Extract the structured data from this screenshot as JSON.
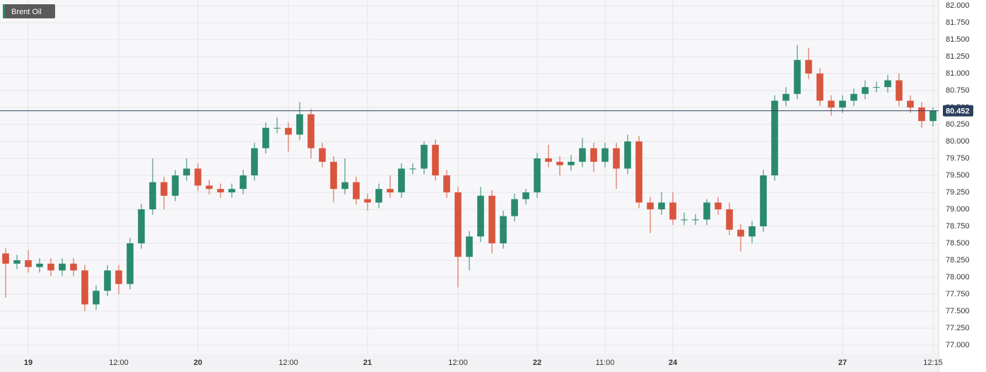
{
  "chart_data": {
    "type": "candlestick",
    "title": "Brent Oil",
    "last": 80.452,
    "up_color": "#2a8a6c",
    "down_color": "#d9553e",
    "grid": true,
    "xlim": [
      -0.5,
      82.5
    ],
    "ylim": [
      76.875,
      82.083
    ],
    "xticks": [
      {
        "value": 2,
        "label": "19"
      },
      {
        "value": 10,
        "label": "12:00"
      },
      {
        "value": 17,
        "label": "20"
      },
      {
        "value": 25,
        "label": "12:00"
      },
      {
        "value": 32,
        "label": "21"
      },
      {
        "value": 40,
        "label": "12:00"
      },
      {
        "value": 47,
        "label": "22"
      },
      {
        "value": 53,
        "label": "11:00"
      },
      {
        "value": 59,
        "label": "24"
      },
      {
        "value": 74,
        "label": "27"
      },
      {
        "value": 82,
        "label": "12:15"
      }
    ],
    "yticks": [
      {
        "value": 77,
        "label": "77.000"
      },
      {
        "value": 77.25,
        "label": "77.250"
      },
      {
        "value": 77.5,
        "label": "77.500"
      },
      {
        "value": 77.75,
        "label": "77.750"
      },
      {
        "value": 78,
        "label": "78.000"
      },
      {
        "value": 78.25,
        "label": "78.250"
      },
      {
        "value": 78.5,
        "label": "78.500"
      },
      {
        "value": 78.75,
        "label": "78.750"
      },
      {
        "value": 79,
        "label": "79.000"
      },
      {
        "value": 79.25,
        "label": "79.250"
      },
      {
        "value": 79.5,
        "label": "79.500"
      },
      {
        "value": 79.75,
        "label": "79.750"
      },
      {
        "value": 80,
        "label": "80.000"
      },
      {
        "value": 80.25,
        "label": "80.250"
      },
      {
        "value": 80.5,
        "label": "80.500"
      },
      {
        "value": 80.75,
        "label": "80.750"
      },
      {
        "value": 81,
        "label": "81.000"
      },
      {
        "value": 81.25,
        "label": "81.250"
      },
      {
        "value": 81.5,
        "label": "81.500"
      },
      {
        "value": 81.75,
        "label": "81.750"
      },
      {
        "value": 82,
        "label": "82.000"
      }
    ],
    "open": [
      78.35,
      78.2,
      78.25,
      78.15,
      78.2,
      78.1,
      78.2,
      78.1,
      77.6,
      77.8,
      78.1,
      77.9,
      78.5,
      79.0,
      79.4,
      79.2,
      79.5,
      79.6,
      79.35,
      79.3,
      79.25,
      79.3,
      79.5,
      79.9,
      80.2,
      80.2,
      80.1,
      80.4,
      79.9,
      79.7,
      79.3,
      79.4,
      79.15,
      79.1,
      79.3,
      79.25,
      79.6,
      79.6,
      79.95,
      79.5,
      79.25,
      78.3,
      78.6,
      79.2,
      78.5,
      78.9,
      79.15,
      79.25,
      79.75,
      79.7,
      79.65,
      79.7,
      79.9,
      79.7,
      79.9,
      79.6,
      80.0,
      79.1,
      79.0,
      79.1,
      78.85,
      78.85,
      78.85,
      79.1,
      79.0,
      78.7,
      78.6,
      78.75,
      79.5,
      80.6,
      80.7,
      81.2,
      81.0,
      80.6,
      80.5,
      80.6,
      80.7,
      80.8,
      80.8,
      80.9,
      80.6,
      80.5,
      80.3
    ],
    "high": [
      78.43,
      78.33,
      78.4,
      78.28,
      78.28,
      78.28,
      78.28,
      78.18,
      77.88,
      78.18,
      78.18,
      78.58,
      79.08,
      79.75,
      79.48,
      79.58,
      79.75,
      79.68,
      79.43,
      79.38,
      79.38,
      79.58,
      79.98,
      80.28,
      80.35,
      80.28,
      80.58,
      80.48,
      79.98,
      79.78,
      79.75,
      79.48,
      79.23,
      79.38,
      79.5,
      79.68,
      79.68,
      80.0,
      80.03,
      79.58,
      79.33,
      78.68,
      79.33,
      79.28,
      78.98,
      79.23,
      79.3,
      79.83,
      79.95,
      79.78,
      79.8,
      80.05,
      79.98,
      79.98,
      79.98,
      80.1,
      80.08,
      79.18,
      79.25,
      79.25,
      78.95,
      78.93,
      79.15,
      79.18,
      79.1,
      78.78,
      78.83,
      79.58,
      80.68,
      80.8,
      81.42,
      81.38,
      81.08,
      80.68,
      80.68,
      80.78,
      80.9,
      80.88,
      80.98,
      81.0,
      80.68,
      80.58,
      80.5
    ],
    "low": [
      77.7,
      78.12,
      78.07,
      78.07,
      78.02,
      78.02,
      78.02,
      77.5,
      77.52,
      77.72,
      77.75,
      77.82,
      78.42,
      78.92,
      79.0,
      79.12,
      79.42,
      79.27,
      79.22,
      79.17,
      79.17,
      79.22,
      79.42,
      79.82,
      80.12,
      79.85,
      80.02,
      79.75,
      79.62,
      79.1,
      79.22,
      79.07,
      78.98,
      79.02,
      79.17,
      79.17,
      79.52,
      79.52,
      79.42,
      79.17,
      77.85,
      78.1,
      78.52,
      78.35,
      78.42,
      78.82,
      79.07,
      79.17,
      79.62,
      79.5,
      79.57,
      79.62,
      79.55,
      79.62,
      79.3,
      79.52,
      79.02,
      78.65,
      78.92,
      78.77,
      78.77,
      78.77,
      78.77,
      78.92,
      78.62,
      78.38,
      78.5,
      78.67,
      79.42,
      80.52,
      80.62,
      80.92,
      80.52,
      80.38,
      80.42,
      80.52,
      80.62,
      80.72,
      80.72,
      80.52,
      80.42,
      80.2,
      80.22
    ],
    "close": [
      78.2,
      78.25,
      78.15,
      78.2,
      78.1,
      78.2,
      78.1,
      77.6,
      77.8,
      78.1,
      77.9,
      78.5,
      79.0,
      79.4,
      79.2,
      79.5,
      79.6,
      79.35,
      79.3,
      79.25,
      79.3,
      79.5,
      79.9,
      80.2,
      80.2,
      80.1,
      80.4,
      79.9,
      79.7,
      79.3,
      79.4,
      79.15,
      79.1,
      79.3,
      79.25,
      79.6,
      79.6,
      79.95,
      79.5,
      79.25,
      78.3,
      78.6,
      79.2,
      78.5,
      78.9,
      79.15,
      79.25,
      79.75,
      79.7,
      79.65,
      79.7,
      79.9,
      79.7,
      79.9,
      79.6,
      80.0,
      79.1,
      79.0,
      79.1,
      78.85,
      78.85,
      78.85,
      79.1,
      79.0,
      78.7,
      78.6,
      78.75,
      79.5,
      80.6,
      80.7,
      81.2,
      81.0,
      80.6,
      80.5,
      80.6,
      80.7,
      80.8,
      80.8,
      80.9,
      80.6,
      80.5,
      80.3,
      80.45
    ]
  }
}
